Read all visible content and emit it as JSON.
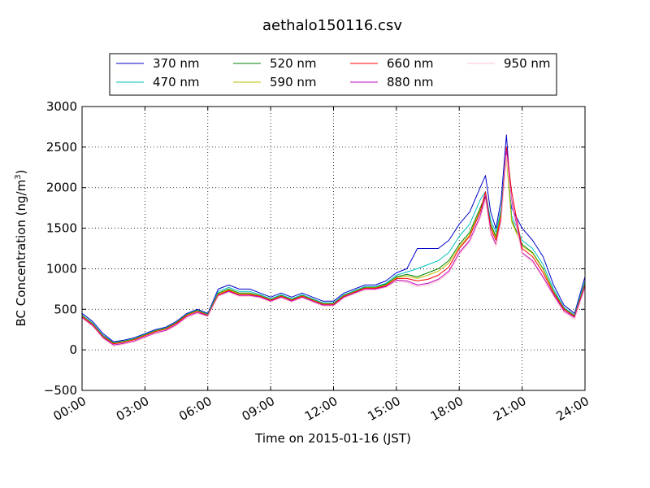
{
  "chart_data": {
    "type": "line",
    "title": "aethalo150116.csv",
    "xlabel": "Time on 2015-01-16 (JST)",
    "ylabel": "BC Concentration (ng/m³)",
    "ylabel_main": "BC Concentration (ng/m",
    "ylabel_sup": "3",
    "ylabel_end": ")",
    "xlim": [
      0,
      24
    ],
    "ylim": [
      -500,
      3000
    ],
    "x_ticks": [
      0,
      3,
      6,
      9,
      12,
      15,
      18,
      21,
      24
    ],
    "x_tick_labels": [
      "00:00",
      "03:00",
      "06:00",
      "09:00",
      "12:00",
      "15:00",
      "18:00",
      "21:00",
      "24:00"
    ],
    "y_ticks": [
      -500,
      0,
      500,
      1000,
      1500,
      2000,
      2500,
      3000
    ],
    "y_tick_labels": [
      "−500",
      "0",
      "500",
      "1000",
      "1500",
      "2000",
      "2500",
      "3000"
    ],
    "grid": true,
    "legend_position": "top-center",
    "legend_columns": 4,
    "x": [
      0,
      0.5,
      1,
      1.5,
      2,
      2.5,
      3,
      3.5,
      4,
      4.5,
      5,
      5.5,
      6,
      6.5,
      7,
      7.5,
      8,
      8.5,
      9,
      9.5,
      10,
      10.5,
      11,
      11.5,
      12,
      12.5,
      13,
      13.5,
      14,
      14.5,
      15,
      15.5,
      16,
      16.5,
      17,
      17.5,
      18,
      18.5,
      19,
      19.25,
      19.5,
      19.75,
      20,
      20.25,
      20.5,
      21,
      21.5,
      22,
      22.5,
      23,
      23.5,
      24
    ],
    "series": [
      {
        "name": "370 nm",
        "color": "#0000cc",
        "values": [
          450,
          350,
          200,
          100,
          120,
          150,
          200,
          250,
          280,
          350,
          450,
          500,
          450,
          750,
          800,
          750,
          750,
          700,
          650,
          700,
          650,
          700,
          650,
          600,
          600,
          700,
          750,
          800,
          800,
          850,
          950,
          1000,
          1250,
          1250,
          1250,
          1350,
          1550,
          1700,
          2000,
          2150,
          1700,
          1500,
          1850,
          2650,
          1750,
          1500,
          1350,
          1150,
          800,
          550,
          450,
          900
        ]
      },
      {
        "name": "470 nm",
        "color": "#00bfbf",
        "values": [
          430,
          330,
          180,
          90,
          110,
          140,
          190,
          240,
          270,
          340,
          440,
          490,
          440,
          720,
          770,
          720,
          720,
          680,
          630,
          680,
          630,
          680,
          630,
          580,
          580,
          680,
          730,
          780,
          780,
          820,
          920,
          960,
          1000,
          1050,
          1100,
          1200,
          1400,
          1550,
          1850,
          1950,
          1600,
          1450,
          1750,
          2450,
          1650,
          1350,
          1250,
          1050,
          750,
          520,
          430,
          850
        ]
      },
      {
        "name": "520 nm",
        "color": "#008000",
        "values": [
          420,
          320,
          170,
          85,
          105,
          135,
          185,
          235,
          265,
          335,
          435,
          485,
          435,
          700,
          750,
          700,
          700,
          670,
          620,
          670,
          620,
          670,
          620,
          570,
          570,
          670,
          720,
          770,
          770,
          810,
          900,
          930,
          900,
          950,
          1000,
          1100,
          1300,
          1450,
          1750,
          1900,
          1550,
          1400,
          1700,
          2400,
          1600,
          1300,
          1200,
          1000,
          720,
          510,
          420,
          820
        ]
      },
      {
        "name": "590 nm",
        "color": "#bfbf00",
        "values": [
          420,
          315,
          165,
          80,
          100,
          130,
          180,
          230,
          260,
          330,
          430,
          480,
          430,
          690,
          740,
          690,
          690,
          665,
          615,
          665,
          615,
          665,
          615,
          565,
          565,
          665,
          715,
          765,
          765,
          800,
          890,
          910,
          880,
          920,
          970,
          1070,
          1270,
          1420,
          1720,
          1870,
          1520,
          1380,
          1680,
          2380,
          1580,
          1280,
          1190,
          990,
          710,
          505,
          415,
          810
        ]
      },
      {
        "name": "660 nm",
        "color": "#ff0000",
        "values": [
          410,
          310,
          160,
          75,
          95,
          125,
          175,
          225,
          255,
          325,
          425,
          475,
          425,
          680,
          730,
          680,
          680,
          660,
          610,
          660,
          610,
          660,
          610,
          560,
          560,
          660,
          710,
          760,
          760,
          790,
          880,
          880,
          850,
          870,
          920,
          1020,
          1250,
          1400,
          1700,
          1950,
          1500,
          1350,
          1650,
          2500,
          1950,
          1250,
          1150,
          950,
          700,
          500,
          410,
          800
        ]
      },
      {
        "name": "880 nm",
        "color": "#bf00bf",
        "values": [
          400,
          300,
          150,
          60,
          80,
          110,
          160,
          210,
          240,
          310,
          410,
          460,
          420,
          670,
          720,
          670,
          670,
          650,
          600,
          650,
          600,
          650,
          600,
          550,
          550,
          650,
          700,
          750,
          750,
          780,
          860,
          850,
          800,
          820,
          870,
          970,
          1200,
          1350,
          1650,
          1900,
          1450,
          1300,
          1600,
          2450,
          1850,
          1200,
          1100,
          900,
          680,
          480,
          400,
          780
        ]
      },
      {
        "name": "950 nm",
        "color": "#ffc0cb",
        "values": [
          390,
          290,
          140,
          50,
          70,
          100,
          150,
          200,
          230,
          300,
          400,
          450,
          410,
          660,
          710,
          660,
          660,
          640,
          590,
          640,
          590,
          640,
          590,
          540,
          540,
          640,
          690,
          740,
          740,
          770,
          850,
          830,
          780,
          800,
          850,
          950,
          1180,
          1330,
          1620,
          1850,
          1420,
          1280,
          1580,
          2400,
          1800,
          1180,
          1080,
          880,
          660,
          460,
          380,
          760
        ]
      }
    ]
  }
}
